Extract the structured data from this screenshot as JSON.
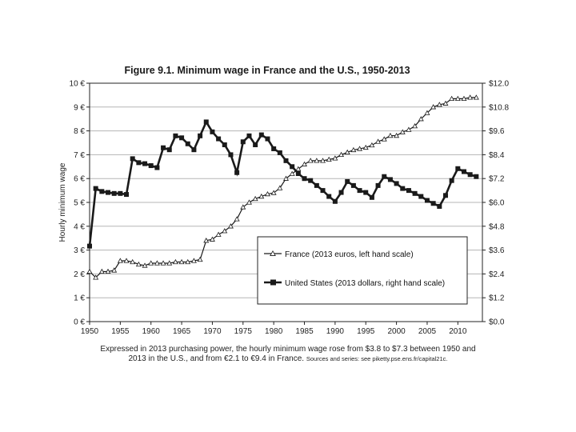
{
  "chart_data": {
    "type": "line",
    "title": "Figure 9.1. Minimum wage in France and the U.S., 1950-2013",
    "ylabel": "Hourly minimum wage",
    "xlim": [
      1950,
      2014
    ],
    "ylim_left": [
      0,
      10
    ],
    "ylim_right": [
      0,
      12
    ],
    "x_ticks": [
      1950,
      1955,
      1960,
      1965,
      1970,
      1975,
      1980,
      1985,
      1990,
      1995,
      2000,
      2005,
      2010
    ],
    "y_left_ticks": [
      "0 €",
      "1 €",
      "2 €",
      "3 €",
      "4 €",
      "5 €",
      "6 €",
      "7 €",
      "8 €",
      "9 €",
      "10 €"
    ],
    "y_right_ticks": [
      "$0.0",
      "$1.2",
      "$2.4",
      "$3.6",
      "$4.8",
      "$6.0",
      "$7.2",
      "$8.4",
      "$9.6",
      "$10.8",
      "$12.0"
    ],
    "grid": "horizontal",
    "legend_position": "center-right",
    "series": [
      {
        "name": "France (2013 euros, left hand scale)",
        "axis": "left",
        "marker": "open-triangle",
        "x": [
          1950,
          1951,
          1952,
          1953,
          1954,
          1955,
          1956,
          1957,
          1958,
          1959,
          1960,
          1961,
          1962,
          1963,
          1964,
          1965,
          1966,
          1967,
          1968,
          1969,
          1970,
          1971,
          1972,
          1973,
          1974,
          1975,
          1976,
          1977,
          1978,
          1979,
          1980,
          1981,
          1982,
          1983,
          1984,
          1985,
          1986,
          1987,
          1988,
          1989,
          1990,
          1991,
          1992,
          1993,
          1994,
          1995,
          1996,
          1997,
          1998,
          1999,
          2000,
          2001,
          2002,
          2003,
          2004,
          2005,
          2006,
          2007,
          2008,
          2009,
          2010,
          2011,
          2012,
          2013
        ],
        "values": [
          2.1,
          1.85,
          2.1,
          2.1,
          2.15,
          2.55,
          2.55,
          2.5,
          2.4,
          2.35,
          2.45,
          2.45,
          2.45,
          2.45,
          2.5,
          2.5,
          2.5,
          2.55,
          2.6,
          3.4,
          3.45,
          3.65,
          3.8,
          4.0,
          4.3,
          4.8,
          5.0,
          5.15,
          5.25,
          5.35,
          5.4,
          5.6,
          6.0,
          6.2,
          6.4,
          6.6,
          6.75,
          6.75,
          6.75,
          6.8,
          6.85,
          7.0,
          7.1,
          7.2,
          7.25,
          7.3,
          7.4,
          7.55,
          7.65,
          7.8,
          7.8,
          7.95,
          8.05,
          8.2,
          8.5,
          8.75,
          9.0,
          9.1,
          9.15,
          9.35,
          9.35,
          9.35,
          9.4,
          9.4
        ]
      },
      {
        "name": "United States (2013 dollars, right hand scale)",
        "axis": "right",
        "marker": "filled-square",
        "x": [
          1950,
          1951,
          1952,
          1953,
          1954,
          1955,
          1956,
          1957,
          1958,
          1959,
          1960,
          1961,
          1962,
          1963,
          1964,
          1965,
          1966,
          1967,
          1968,
          1969,
          1970,
          1971,
          1972,
          1973,
          1974,
          1975,
          1976,
          1977,
          1978,
          1979,
          1980,
          1981,
          1982,
          1983,
          1984,
          1985,
          1986,
          1987,
          1988,
          1989,
          1990,
          1991,
          1992,
          1993,
          1994,
          1995,
          1996,
          1997,
          1998,
          1999,
          2000,
          2001,
          2002,
          2003,
          2004,
          2005,
          2006,
          2007,
          2008,
          2009,
          2010,
          2011,
          2012,
          2013
        ],
        "values": [
          3.8,
          6.7,
          6.55,
          6.5,
          6.45,
          6.45,
          6.4,
          8.2,
          8.0,
          7.95,
          7.85,
          7.75,
          8.75,
          8.65,
          9.35,
          9.25,
          8.95,
          8.65,
          9.35,
          10.05,
          9.55,
          9.2,
          8.9,
          8.4,
          7.5,
          9.05,
          9.35,
          8.9,
          9.4,
          9.2,
          8.7,
          8.5,
          8.1,
          7.8,
          7.45,
          7.2,
          7.1,
          6.85,
          6.6,
          6.3,
          6.05,
          6.5,
          7.05,
          6.85,
          6.6,
          6.5,
          6.25,
          6.85,
          7.3,
          7.15,
          6.95,
          6.7,
          6.6,
          6.45,
          6.3,
          6.1,
          5.95,
          5.8,
          6.35,
          7.1,
          7.7,
          7.55,
          7.4,
          7.3
        ]
      }
    ]
  },
  "caption": {
    "text": "Expressed in 2013 purchasing power, the hourly minimum wage rose from $3.8 to $7.3 between 1950 and 2013 in the U.S., and from €2.1 to €9.4 in France.",
    "sources": "Sources and series: see piketty.pse.ens.fr/capital21c."
  }
}
